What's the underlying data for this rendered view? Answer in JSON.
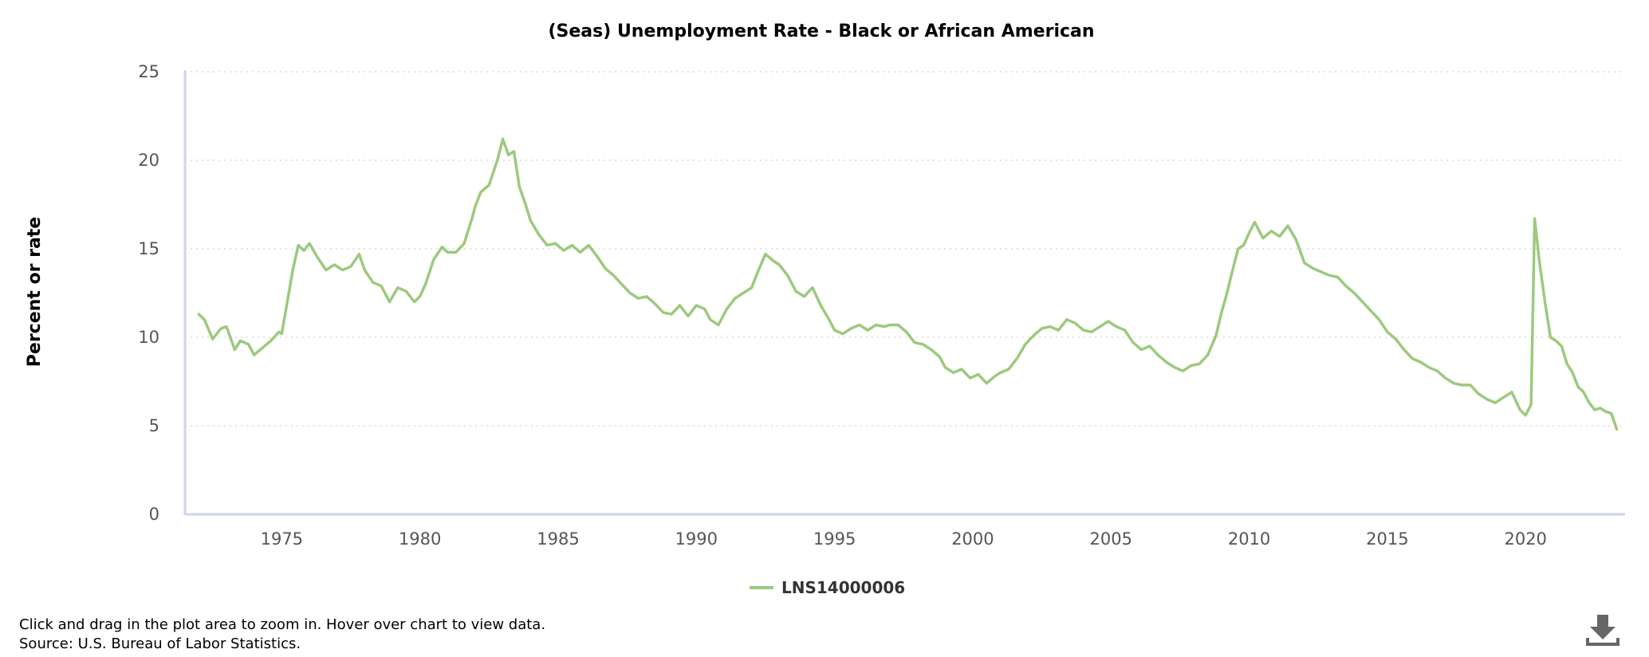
{
  "chart_data": {
    "type": "line",
    "title": "(Seas) Unemployment Rate - Black or African American",
    "ylabel": "Percent or rate",
    "xlabel": "",
    "ylim": [
      0,
      25
    ],
    "xlim": [
      1971.5,
      2023.6
    ],
    "yticks": [
      "0",
      "5",
      "10",
      "15",
      "20",
      "25"
    ],
    "xticks": [
      "1975",
      "1980",
      "1985",
      "1990",
      "1995",
      "2000",
      "2005",
      "2010",
      "2015",
      "2020"
    ],
    "grid": "horizontal dotted",
    "legend": "bottom-center",
    "color": "#9dc97e",
    "series": [
      {
        "name": "LNS14000006",
        "x": [
          1972.0,
          1972.2,
          1972.5,
          1972.8,
          1973.0,
          1973.3,
          1973.5,
          1973.8,
          1974.0,
          1974.3,
          1974.6,
          1974.9,
          1975.0,
          1975.2,
          1975.4,
          1975.6,
          1975.8,
          1976.0,
          1976.3,
          1976.6,
          1976.9,
          1977.2,
          1977.5,
          1977.8,
          1978.0,
          1978.3,
          1978.6,
          1978.9,
          1979.2,
          1979.5,
          1979.8,
          1980.0,
          1980.2,
          1980.5,
          1980.8,
          1981.0,
          1981.3,
          1981.6,
          1981.9,
          1982.0,
          1982.2,
          1982.5,
          1982.8,
          1983.0,
          1983.2,
          1983.4,
          1983.6,
          1983.8,
          1984.0,
          1984.3,
          1984.6,
          1984.9,
          1985.2,
          1985.5,
          1985.8,
          1986.1,
          1986.4,
          1986.7,
          1987.0,
          1987.3,
          1987.6,
          1987.9,
          1988.2,
          1988.5,
          1988.8,
          1989.1,
          1989.4,
          1989.7,
          1990.0,
          1990.3,
          1990.5,
          1990.8,
          1991.1,
          1991.4,
          1991.7,
          1992.0,
          1992.2,
          1992.5,
          1992.8,
          1993.0,
          1993.3,
          1993.6,
          1993.9,
          1994.2,
          1994.5,
          1994.8,
          1995.0,
          1995.3,
          1995.6,
          1995.9,
          1996.2,
          1996.5,
          1996.8,
          1997.0,
          1997.3,
          1997.6,
          1997.9,
          1998.2,
          1998.5,
          1998.8,
          1999.0,
          1999.3,
          1999.6,
          1999.9,
          2000.2,
          2000.5,
          2000.8,
          2001.0,
          2001.3,
          2001.6,
          2001.9,
          2002.2,
          2002.5,
          2002.8,
          2003.1,
          2003.4,
          2003.7,
          2004.0,
          2004.3,
          2004.6,
          2004.9,
          2005.2,
          2005.5,
          2005.8,
          2006.1,
          2006.4,
          2006.7,
          2007.0,
          2007.3,
          2007.6,
          2007.9,
          2008.2,
          2008.5,
          2008.8,
          2009.0,
          2009.2,
          2009.4,
          2009.6,
          2009.8,
          2010.0,
          2010.2,
          2010.5,
          2010.8,
          2011.1,
          2011.4,
          2011.7,
          2012.0,
          2012.3,
          2012.6,
          2012.9,
          2013.2,
          2013.5,
          2013.8,
          2014.1,
          2014.4,
          2014.7,
          2015.0,
          2015.3,
          2015.6,
          2015.9,
          2016.2,
          2016.5,
          2016.8,
          2017.1,
          2017.4,
          2017.7,
          2018.0,
          2018.3,
          2018.6,
          2018.9,
          2019.2,
          2019.5,
          2019.8,
          2020.0,
          2020.2,
          2020.33,
          2020.5,
          2020.7,
          2020.9,
          2021.1,
          2021.3,
          2021.5,
          2021.7,
          2021.9,
          2022.1,
          2022.3,
          2022.5,
          2022.7,
          2022.9,
          2023.1,
          2023.3
        ],
        "values": [
          11.3,
          11.0,
          9.9,
          10.5,
          10.6,
          9.3,
          9.8,
          9.6,
          9.0,
          9.4,
          9.8,
          10.3,
          10.2,
          12.0,
          13.8,
          15.2,
          14.9,
          15.3,
          14.5,
          13.8,
          14.1,
          13.8,
          14.0,
          14.7,
          13.8,
          13.1,
          12.9,
          12.0,
          12.8,
          12.6,
          12.0,
          12.3,
          13.0,
          14.4,
          15.1,
          14.8,
          14.8,
          15.3,
          16.8,
          17.4,
          18.2,
          18.6,
          20.0,
          21.2,
          20.3,
          20.5,
          18.5,
          17.6,
          16.6,
          15.8,
          15.2,
          15.3,
          14.9,
          15.2,
          14.8,
          15.2,
          14.6,
          13.9,
          13.5,
          13.0,
          12.5,
          12.2,
          12.3,
          11.9,
          11.4,
          11.3,
          11.8,
          11.2,
          11.8,
          11.6,
          11.0,
          10.7,
          11.6,
          12.2,
          12.5,
          12.8,
          13.6,
          14.7,
          14.3,
          14.1,
          13.5,
          12.6,
          12.3,
          12.8,
          11.8,
          11.0,
          10.4,
          10.2,
          10.5,
          10.7,
          10.4,
          10.7,
          10.6,
          10.7,
          10.7,
          10.3,
          9.7,
          9.6,
          9.3,
          8.9,
          8.3,
          8.0,
          8.2,
          7.7,
          7.9,
          7.4,
          7.8,
          8.0,
          8.2,
          8.8,
          9.6,
          10.1,
          10.5,
          10.6,
          10.4,
          11.0,
          10.8,
          10.4,
          10.3,
          10.6,
          10.9,
          10.6,
          10.4,
          9.7,
          9.3,
          9.5,
          9.0,
          8.6,
          8.3,
          8.1,
          8.4,
          8.5,
          9.0,
          10.1,
          11.4,
          12.5,
          13.8,
          15.0,
          15.2,
          15.9,
          16.5,
          15.6,
          16.0,
          15.7,
          16.3,
          15.5,
          14.2,
          13.9,
          13.7,
          13.5,
          13.4,
          12.9,
          12.5,
          12.0,
          11.5,
          11.0,
          10.3,
          9.9,
          9.3,
          8.8,
          8.6,
          8.3,
          8.1,
          7.7,
          7.4,
          7.3,
          7.3,
          6.8,
          6.5,
          6.3,
          6.6,
          6.9,
          5.9,
          5.6,
          6.2,
          16.7,
          14.3,
          12.0,
          10.0,
          9.8,
          9.5,
          8.5,
          8.0,
          7.2,
          6.9,
          6.3,
          5.9,
          6.0,
          5.8,
          5.7,
          4.8
        ]
      }
    ]
  },
  "footer": {
    "note": "Click and drag in the plot area to zoom in. Hover over chart to view data.",
    "source": "Source: U.S. Bureau of Labor Statistics."
  },
  "icons": {
    "download": "download-icon"
  }
}
